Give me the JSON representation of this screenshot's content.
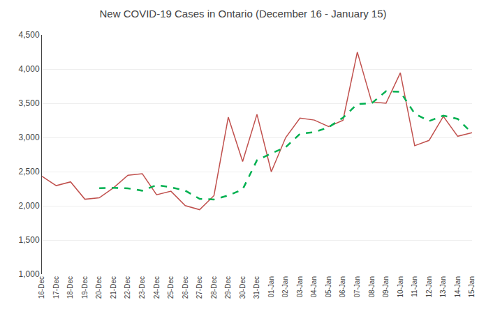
{
  "chart_data": {
    "type": "line",
    "title": "New COVID-19 Cases in Ontario (December 16 - January 15)",
    "categories": [
      "16-Dec",
      "17-Dec",
      "18-Dec",
      "19-Dec",
      "20-Dec",
      "21-Dec",
      "22-Dec",
      "23-Dec",
      "24-Dec",
      "25-Dec",
      "26-Dec",
      "27-Dec",
      "28-Dec",
      "29-Dec",
      "30-Dec",
      "31-Dec",
      "01-Jan",
      "02-Jan",
      "03-Jan",
      "04-Jan",
      "05-Jan",
      "06-Jan",
      "07-Jan",
      "08-Jan",
      "09-Jan",
      "10-Jan",
      "11-Jan",
      "12-Jan",
      "13-Jan",
      "14-Jan",
      "15-Jan"
    ],
    "series": [
      {
        "color": "#c0504d",
        "line_style": "solid",
        "values": [
          2432,
          2295,
          2350,
          2096,
          2117,
          2264,
          2447,
          2470,
          2161,
          2213,
          2002,
          1943,
          2148,
          3296,
          2647,
          3338,
          2498,
          2997,
          3283,
          3254,
          3159,
          3251,
          4249,
          3519,
          3500,
          3945,
          2879,
          2956,
          3307,
          3017,
          3068
        ]
      },
      {
        "color": "#00b050",
        "line_style": "dashed",
        "values": [
          null,
          null,
          null,
          null,
          2258,
          2264,
          2255,
          2221,
          2303,
          2271,
          2222,
          2102,
          2093,
          2151,
          2239,
          2666,
          2766,
          2857,
          3052,
          3078,
          3149,
          3289,
          3489,
          3499,
          3676,
          3667,
          3348,
          3239,
          3319,
          3271,
          3065
        ]
      }
    ],
    "ylim": [
      1000,
      4500
    ],
    "yticks": [
      {
        "value": 1000,
        "label": "1,000"
      },
      {
        "value": 1500,
        "label": "1,500"
      },
      {
        "value": 2000,
        "label": "2,000"
      },
      {
        "value": 2500,
        "label": "2,500"
      },
      {
        "value": 3000,
        "label": "3,000"
      },
      {
        "value": 3500,
        "label": "3,500"
      },
      {
        "value": 4000,
        "label": "4,000"
      },
      {
        "value": 4500,
        "label": "4,500"
      }
    ],
    "grid": true
  }
}
